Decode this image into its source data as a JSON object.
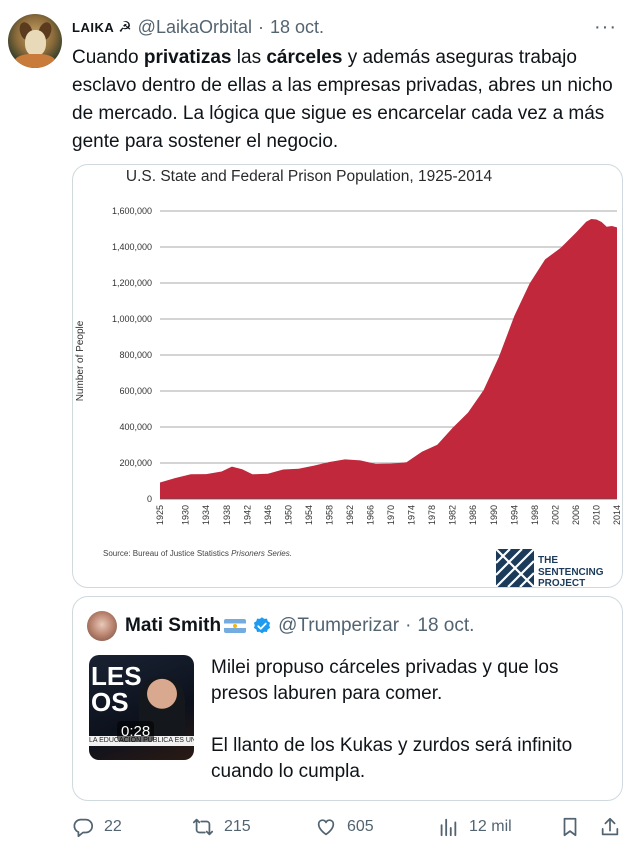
{
  "tweet": {
    "author_name": "LAIKA",
    "author_glyph": "☭",
    "handle": "@LaikaOrbital",
    "separator": "·",
    "date": "18 oct.",
    "more": "···",
    "text_parts": [
      {
        "t": "Cuando ",
        "b": false
      },
      {
        "t": "privatizas",
        "b": true
      },
      {
        "t": " las ",
        "b": false
      },
      {
        "t": "cárceles",
        "b": true
      },
      {
        "t": " y además aseguras trabajo esclavo dentro de ellas a las empresas privadas, abres un nicho de mercado. La lógica que sigue es encarcelar cada vez a más gente para sostener el negocio.",
        "b": false
      }
    ]
  },
  "chart_data": {
    "type": "area",
    "title": "U.S. State and Federal Prison Population, 1925-2014",
    "ylabel": "Number of People",
    "xlabel": "",
    "ylim": [
      0,
      1600000
    ],
    "y_ticks": [
      "0",
      "200,000",
      "400,000",
      "600,000",
      "800,000",
      "1,000,000",
      "1,200,000",
      "1,400,000",
      "1,600,000"
    ],
    "x_ticks": [
      "1925",
      "1930",
      "1934",
      "1938",
      "1942",
      "1946",
      "1950",
      "1954",
      "1958",
      "1962",
      "1966",
      "1970",
      "1974",
      "1978",
      "1982",
      "1986",
      "1990",
      "1994",
      "1998",
      "2002",
      "2006",
      "2010",
      "2014"
    ],
    "fill_color": "#c1283c",
    "source_prefix": "Source: Bureau of Justice Statistics ",
    "source_italic": "Prisoners Series.",
    "logo_text": [
      "THE",
      "SENTENCING",
      "PROJECT"
    ],
    "series": [
      {
        "x": [
          1925,
          1928,
          1931,
          1934,
          1937,
          1939,
          1941,
          1943,
          1946,
          1949,
          1952,
          1955,
          1958,
          1961,
          1964,
          1967,
          1970,
          1973,
          1976,
          1979,
          1982,
          1985,
          1988,
          1991,
          1994,
          1997,
          2000,
          2003,
          2006,
          2008,
          2009,
          2010,
          2011,
          2012,
          2013,
          2014
        ],
        "values": [
          91669,
          116390,
          137082,
          138316,
          152741,
          179818,
          165439,
          137220,
          140079,
          163749,
          168233,
          185780,
          205643,
          220149,
          214336,
          194896,
          196429,
          204211,
          262833,
          301470,
          395516,
          480568,
          603732,
          789610,
          1016691,
          1197590,
          1331278,
          1394319,
          1479537,
          1540036,
          1555490,
          1552669,
          1538847,
          1512430,
          1516879,
          1508636
        ]
      }
    ]
  },
  "quote": {
    "name": "Mati Smith",
    "handle": "@Trumperizar",
    "separator": "·",
    "date": "18 oct.",
    "duration": "0:28",
    "thumb_letters": "LES\nOS",
    "thumb_banner": "LA EDUCACIÓN PÚBLICA ES UNA GRAN ME",
    "paragraphs": [
      "Milei propuso cárceles privadas y que los presos laburen para comer.",
      "El llanto de los Kukas y zurdos será infinito cuando lo cumpla."
    ]
  },
  "actions": {
    "replies": "22",
    "reposts": "215",
    "likes": "605",
    "views": "12 mil"
  },
  "colors": {
    "text": "#0f1419",
    "secondary": "#536471",
    "border": "#cfd9de",
    "verified": "#1d9bf0"
  }
}
